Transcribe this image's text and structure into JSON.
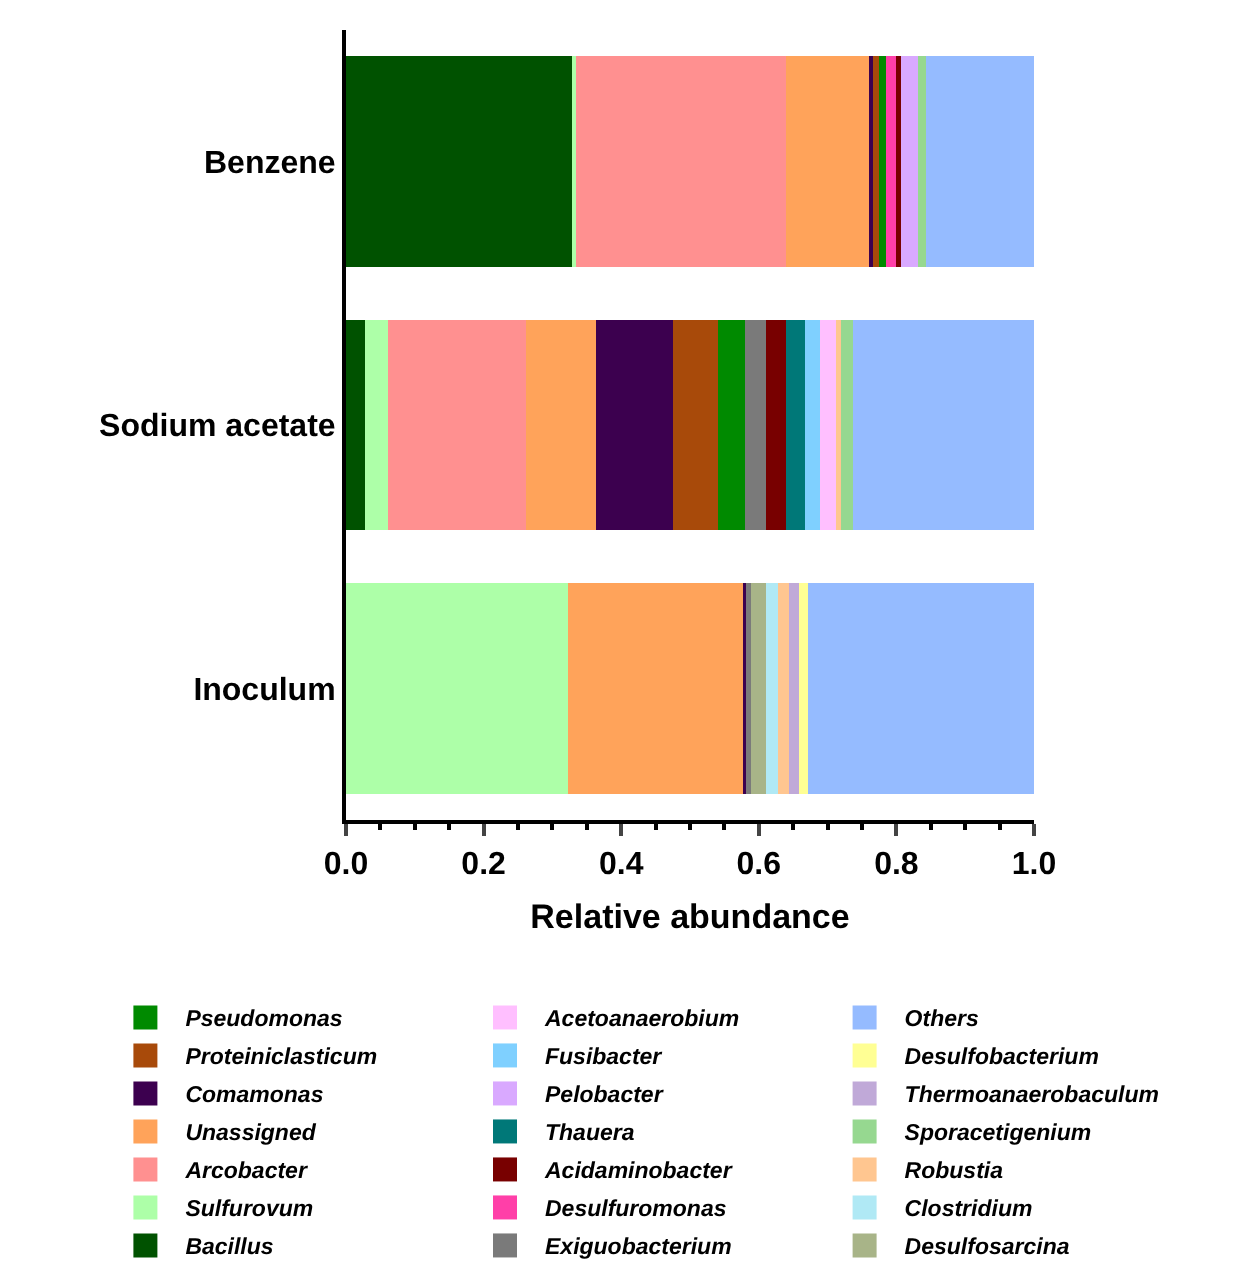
{
  "chart_data": {
    "type": "bar",
    "orientation": "horizontal",
    "stacked": true,
    "xlabel": "Relative abundance",
    "categories": [
      "Benzene",
      "Sodium acetate",
      "Inoculum"
    ],
    "xlim": [
      0,
      1
    ],
    "xticks": [
      {
        "value": 0,
        "label": "0.0"
      },
      0.2,
      0.4,
      0.6,
      0.8,
      {
        "value": 1,
        "label": "1.0"
      }
    ],
    "grid": false,
    "legend": "bottom",
    "series": [
      {
        "name": "Bacillus",
        "color": "#005200",
        "values": [
          0.328,
          0.027,
          null
        ]
      },
      {
        "name": "Sulfurovum",
        "color": "#adffa8",
        "values": [
          0.007,
          0.034,
          0.323
        ]
      },
      {
        "name": "Arcobacter",
        "color": "#ff9090",
        "values": [
          0.304,
          0.2,
          null
        ]
      },
      {
        "name": "Unassigned",
        "color": "#ffa35a",
        "values": [
          0.121,
          0.103,
          0.254
        ]
      },
      {
        "name": "Comamonas",
        "color": "#3c004f",
        "values": [
          0.006,
          0.111,
          0.007
        ]
      },
      {
        "name": "Proteiniclasticum",
        "color": "#a84a0a",
        "values": [
          0.009,
          0.065,
          null
        ]
      },
      {
        "name": "Pseudomonas",
        "color": "#008a00",
        "values": [
          0.01,
          0.04,
          null
        ]
      },
      {
        "name": "Exiguobacterium",
        "color": "#7a7a7a",
        "values": [
          null,
          0.03,
          0.005
        ]
      },
      {
        "name": "Desulfuromonas",
        "color": "#ff3fa8",
        "values": [
          0.017,
          null,
          null
        ]
      },
      {
        "name": "Acidaminobacter",
        "color": "#780000",
        "values": [
          0.005,
          0.029,
          null
        ]
      },
      {
        "name": "Thauera",
        "color": "#007878",
        "values": [
          null,
          0.028,
          null
        ]
      },
      {
        "name": "Pelobacter",
        "color": "#d9a9ff",
        "values": [
          0.024,
          null,
          null
        ]
      },
      {
        "name": "Fusibacter",
        "color": "#7fd0ff",
        "values": [
          null,
          0.022,
          null
        ]
      },
      {
        "name": "Acetoanaerobium",
        "color": "#ffbfff",
        "values": [
          null,
          0.023,
          null
        ]
      },
      {
        "name": "Desulfosarcina",
        "color": "#a8b488",
        "values": [
          null,
          null,
          0.022
        ]
      },
      {
        "name": "Clostridium",
        "color": "#b0e9f5",
        "values": [
          null,
          null,
          0.017
        ]
      },
      {
        "name": "Robustia",
        "color": "#ffc690",
        "values": [
          null,
          0.008,
          0.016
        ]
      },
      {
        "name": "Sporacetigenium",
        "color": "#96d890",
        "values": [
          0.012,
          0.017,
          null
        ]
      },
      {
        "name": "Thermoanaerobaculum",
        "color": "#c0a9d8",
        "values": [
          null,
          null,
          0.014
        ]
      },
      {
        "name": "Desulfobacterium",
        "color": "#ffff94",
        "values": [
          null,
          null,
          0.014
        ]
      },
      {
        "name": "Others",
        "color": "#95bbff",
        "values": [
          0.157,
          0.263,
          0.328
        ]
      }
    ]
  }
}
